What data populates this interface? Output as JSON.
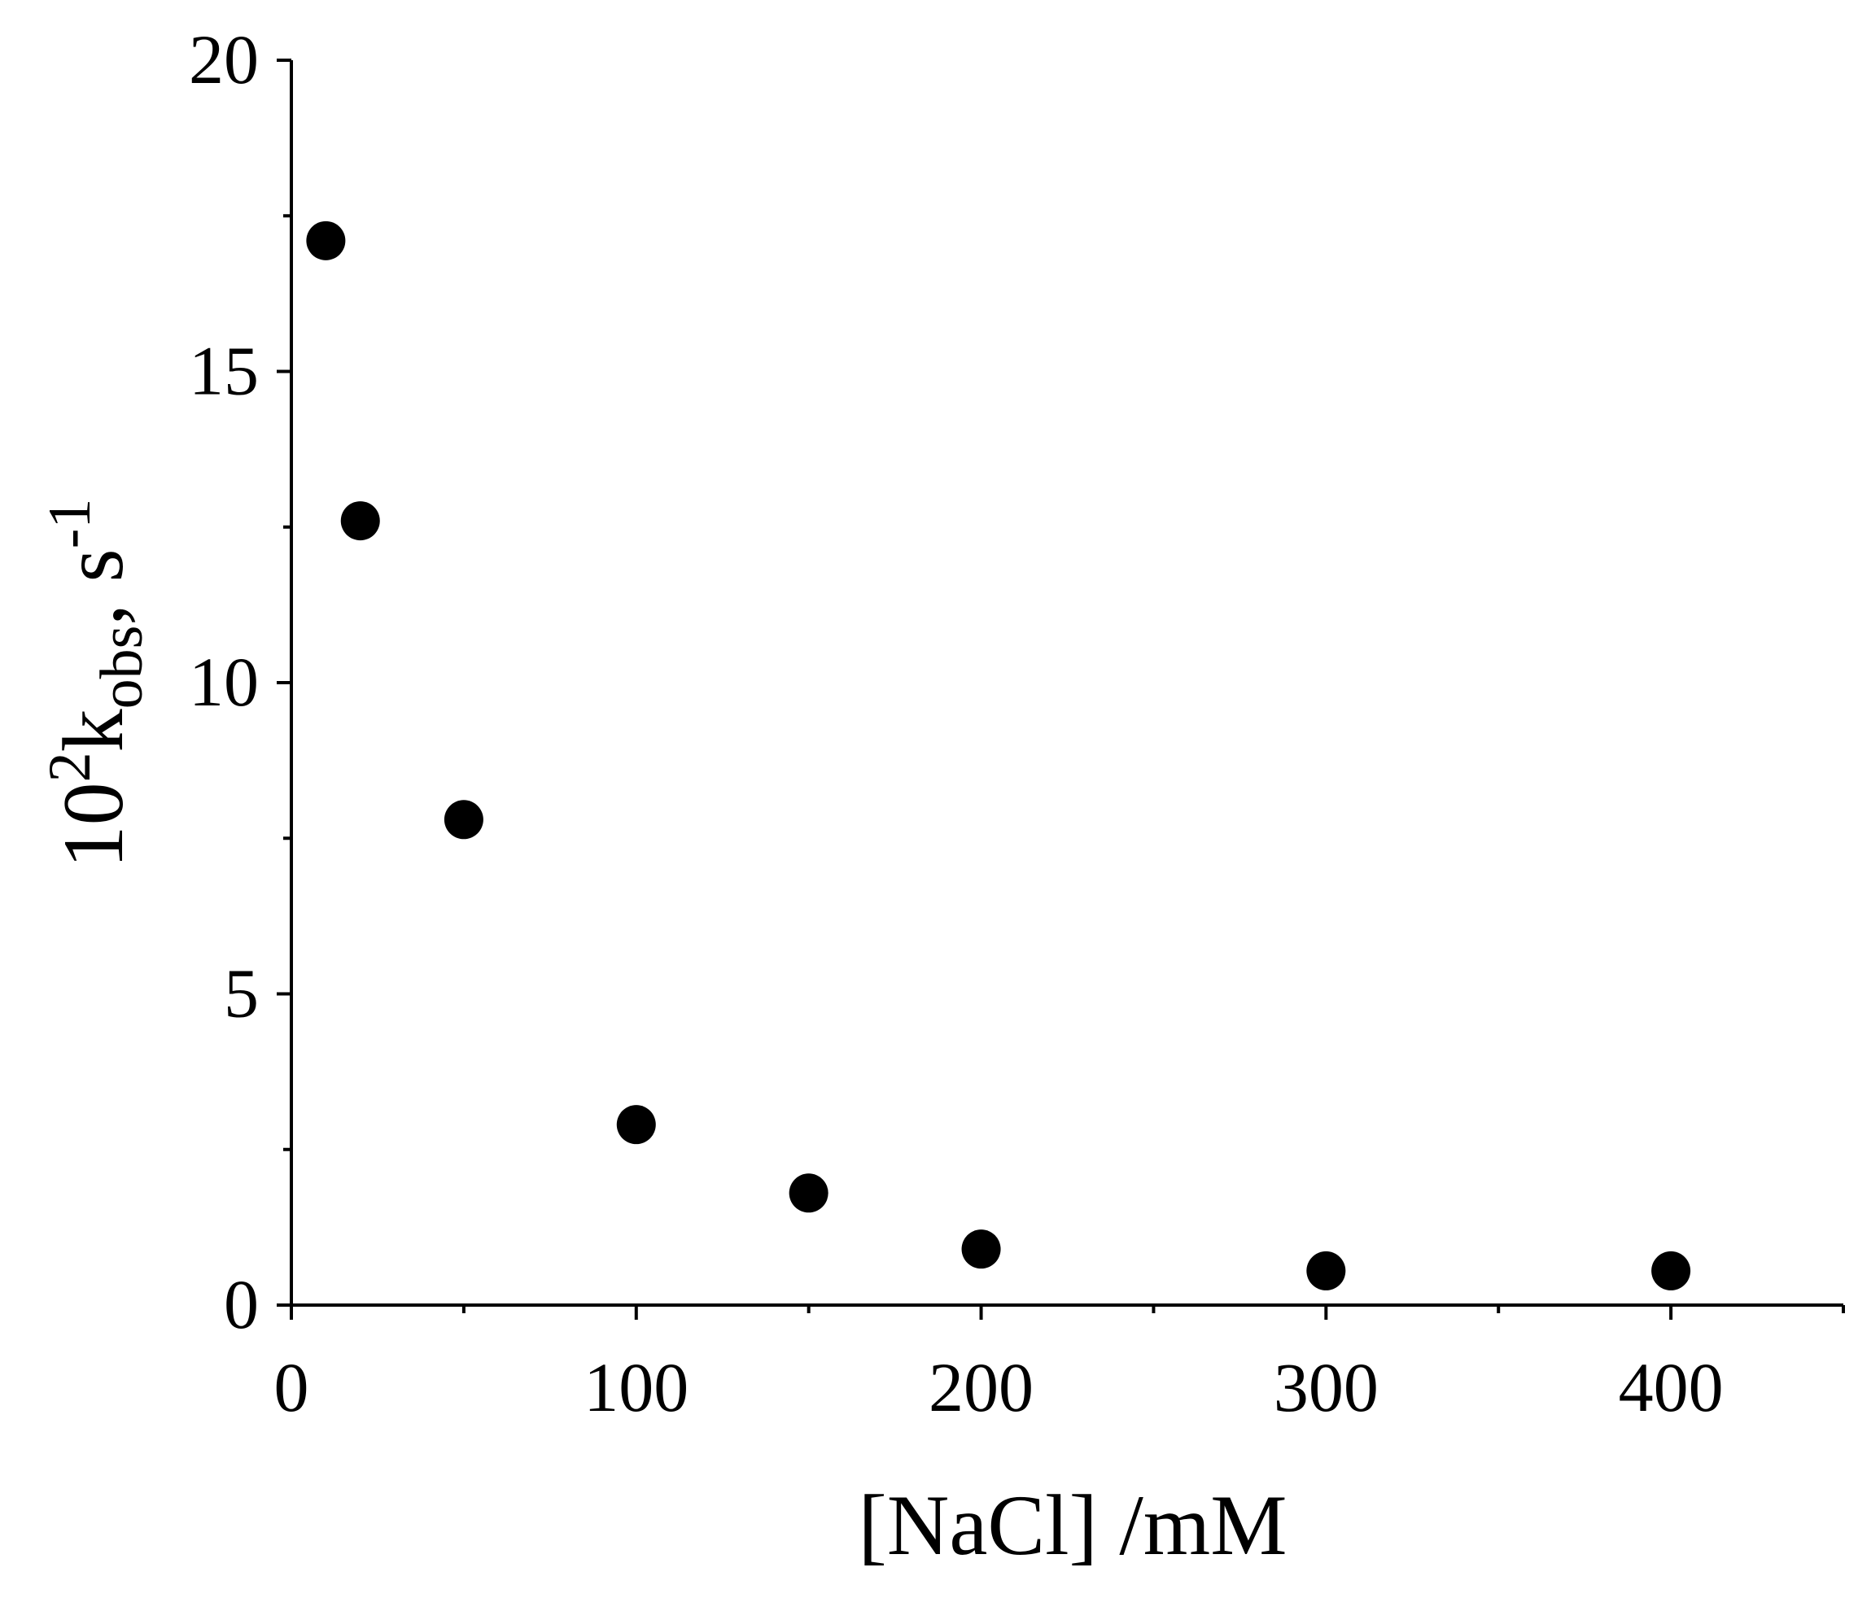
{
  "chart_data": {
    "type": "scatter",
    "xlabel": "[NaCl] /mM",
    "ylabel": {
      "prefix": "10",
      "prefix_superscript": "2",
      "symbol": "k",
      "symbol_subscript": "obs",
      "separator": ", ",
      "unit": "s",
      "unit_superscript": "-1"
    },
    "xlim": [
      0,
      450
    ],
    "ylim": [
      0,
      20
    ],
    "x_major_ticks": [
      0,
      100,
      200,
      300,
      400
    ],
    "x_tick_labels": [
      "0",
      "100",
      "200",
      "300",
      "400"
    ],
    "x_minor_ticks": [
      50,
      150,
      250,
      350,
      450
    ],
    "y_major_ticks": [
      0,
      5,
      10,
      15,
      20
    ],
    "y_tick_labels": [
      "0",
      "5",
      "10",
      "15",
      "20"
    ],
    "y_minor_ticks": [
      2.5,
      7.5,
      12.5,
      17.5
    ],
    "grid": false,
    "legend": "none",
    "marker_color": "#000000",
    "series": [
      {
        "x": [
          10,
          20,
          50,
          100,
          150,
          200,
          300,
          400
        ],
        "y": [
          17.1,
          12.6,
          7.8,
          2.9,
          1.8,
          0.9,
          0.55,
          0.55
        ]
      }
    ]
  }
}
